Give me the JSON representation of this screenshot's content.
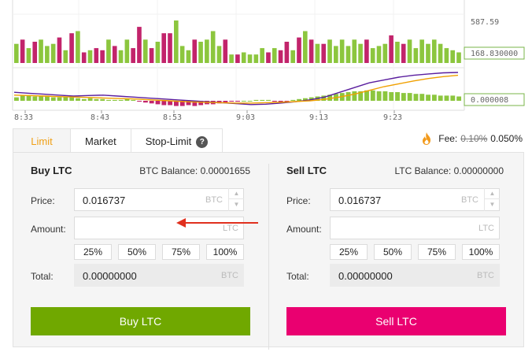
{
  "chart": {
    "right_labels": {
      "top_price": "587.59",
      "volume": "168.830000",
      "macd": "0.000008"
    },
    "time_ticks": [
      "8:33",
      "8:43",
      "8:53",
      "9:03",
      "9:13",
      "9:23"
    ],
    "colors": {
      "up": "#8cc63e",
      "down": "#c2246b",
      "ema_fast": "#5a1e9e",
      "ema_slow": "#f0a000",
      "volume_label_border": "#7ab648"
    },
    "volume_bars": [
      {
        "v": 0.45,
        "c": "up"
      },
      {
        "v": 0.55,
        "c": "down"
      },
      {
        "v": 0.35,
        "c": "up"
      },
      {
        "v": 0.5,
        "c": "down"
      },
      {
        "v": 0.55,
        "c": "up"
      },
      {
        "v": 0.4,
        "c": "up"
      },
      {
        "v": 0.45,
        "c": "up"
      },
      {
        "v": 0.6,
        "c": "down"
      },
      {
        "v": 0.3,
        "c": "up"
      },
      {
        "v": 0.7,
        "c": "down"
      },
      {
        "v": 0.75,
        "c": "up"
      },
      {
        "v": 0.25,
        "c": "down"
      },
      {
        "v": 0.3,
        "c": "up"
      },
      {
        "v": 0.35,
        "c": "down"
      },
      {
        "v": 0.3,
        "c": "down"
      },
      {
        "v": 0.55,
        "c": "up"
      },
      {
        "v": 0.4,
        "c": "down"
      },
      {
        "v": 0.3,
        "c": "up"
      },
      {
        "v": 0.55,
        "c": "up"
      },
      {
        "v": 0.35,
        "c": "down"
      },
      {
        "v": 0.85,
        "c": "down"
      },
      {
        "v": 0.55,
        "c": "up"
      },
      {
        "v": 0.35,
        "c": "down"
      },
      {
        "v": 0.5,
        "c": "up"
      },
      {
        "v": 0.7,
        "c": "down"
      },
      {
        "v": 0.7,
        "c": "down"
      },
      {
        "v": 1.0,
        "c": "up"
      },
      {
        "v": 0.4,
        "c": "up"
      },
      {
        "v": 0.3,
        "c": "up"
      },
      {
        "v": 0.55,
        "c": "down"
      },
      {
        "v": 0.5,
        "c": "up"
      },
      {
        "v": 0.55,
        "c": "up"
      },
      {
        "v": 0.75,
        "c": "up"
      },
      {
        "v": 0.4,
        "c": "up"
      },
      {
        "v": 0.55,
        "c": "down"
      },
      {
        "v": 0.2,
        "c": "up"
      },
      {
        "v": 0.2,
        "c": "down"
      },
      {
        "v": 0.25,
        "c": "up"
      },
      {
        "v": 0.2,
        "c": "up"
      },
      {
        "v": 0.2,
        "c": "up"
      },
      {
        "v": 0.35,
        "c": "up"
      },
      {
        "v": 0.25,
        "c": "down"
      },
      {
        "v": 0.35,
        "c": "up"
      },
      {
        "v": 0.3,
        "c": "down"
      },
      {
        "v": 0.5,
        "c": "down"
      },
      {
        "v": 0.3,
        "c": "up"
      },
      {
        "v": 0.6,
        "c": "down"
      },
      {
        "v": 0.75,
        "c": "up"
      },
      {
        "v": 0.55,
        "c": "down"
      },
      {
        "v": 0.45,
        "c": "up"
      },
      {
        "v": 0.45,
        "c": "down"
      },
      {
        "v": 0.55,
        "c": "up"
      },
      {
        "v": 0.4,
        "c": "up"
      },
      {
        "v": 0.55,
        "c": "up"
      },
      {
        "v": 0.4,
        "c": "up"
      },
      {
        "v": 0.55,
        "c": "up"
      },
      {
        "v": 0.45,
        "c": "up"
      },
      {
        "v": 0.55,
        "c": "down"
      },
      {
        "v": 0.35,
        "c": "up"
      },
      {
        "v": 0.4,
        "c": "up"
      },
      {
        "v": 0.45,
        "c": "up"
      },
      {
        "v": 0.65,
        "c": "down"
      },
      {
        "v": 0.5,
        "c": "up"
      },
      {
        "v": 0.45,
        "c": "down"
      },
      {
        "v": 0.55,
        "c": "up"
      },
      {
        "v": 0.35,
        "c": "up"
      },
      {
        "v": 0.55,
        "c": "up"
      },
      {
        "v": 0.45,
        "c": "up"
      },
      {
        "v": 0.55,
        "c": "up"
      },
      {
        "v": 0.45,
        "c": "up"
      },
      {
        "v": 0.35,
        "c": "up"
      },
      {
        "v": 0.3,
        "c": "up"
      },
      {
        "v": 0.25,
        "c": "up"
      }
    ],
    "macd_hist": [
      0.2,
      0.3,
      0.3,
      0.25,
      0.3,
      0.3,
      0.2,
      0.2,
      0.25,
      0.2,
      0.15,
      0.1,
      0.15,
      0.1,
      0.1,
      0.05,
      0.05,
      0.05,
      0.1,
      0.05,
      -0.05,
      -0.1,
      -0.15,
      -0.2,
      -0.25,
      -0.25,
      -0.3,
      -0.3,
      -0.25,
      -0.3,
      -0.25,
      -0.2,
      -0.2,
      -0.15,
      -0.1,
      -0.05,
      -0.05,
      0.0,
      0.0,
      0.05,
      0.05,
      0.05,
      -0.05,
      -0.1,
      -0.1,
      0.05,
      0.1,
      0.15,
      0.2,
      0.25,
      0.3,
      0.35,
      0.4,
      0.45,
      0.5,
      0.55,
      0.55,
      0.6,
      0.6,
      0.55,
      0.55,
      0.5,
      0.5,
      0.45,
      0.45,
      0.4,
      0.4,
      0.35,
      0.35,
      0.3,
      0.3,
      0.3,
      0.25
    ],
    "ema_fast": [
      0.45,
      0.4,
      0.35,
      0.3,
      0.25,
      0.28,
      0.3,
      0.25,
      0.2,
      0.15,
      0.1,
      0.05,
      0.0,
      -0.05,
      -0.1,
      -0.15,
      -0.2,
      -0.18,
      -0.12,
      -0.05,
      0.05,
      0.2,
      0.45,
      0.7,
      0.95,
      1.1,
      1.25,
      1.35,
      1.42,
      1.48,
      1.5
    ],
    "ema_slow": [
      0.3,
      0.28,
      0.25,
      0.22,
      0.2,
      0.18,
      0.15,
      0.12,
      0.1,
      0.06,
      0.02,
      -0.02,
      -0.06,
      -0.08,
      -0.1,
      -0.12,
      -0.12,
      -0.1,
      -0.08,
      -0.04,
      0.0,
      0.08,
      0.2,
      0.35,
      0.55,
      0.75,
      0.9,
      1.05,
      1.18,
      1.28,
      1.35
    ]
  },
  "tabs": [
    {
      "label": "Limit",
      "active": true
    },
    {
      "label": "Market",
      "active": false
    },
    {
      "label": "Stop-Limit",
      "active": false
    }
  ],
  "fee": {
    "label": "Fee:",
    "old": "0.10%",
    "new": "0.050%"
  },
  "buy": {
    "title": "Buy LTC",
    "balance": "BTC Balance: 0.00001655",
    "price_label": "Price:",
    "price_value": "0.016737",
    "price_unit": "BTC",
    "amount_label": "Amount:",
    "amount_value": "",
    "amount_unit": "LTC",
    "pcts": [
      "25%",
      "50%",
      "75%",
      "100%"
    ],
    "total_label": "Total:",
    "total_value": "0.00000000",
    "total_unit": "BTC",
    "button": "Buy LTC"
  },
  "sell": {
    "title": "Sell LTC",
    "balance": "LTC Balance: 0.00000000",
    "price_label": "Price:",
    "price_value": "0.016737",
    "price_unit": "BTC",
    "amount_label": "Amount:",
    "amount_value": "",
    "amount_unit": "LTC",
    "pcts": [
      "25%",
      "50%",
      "75%",
      "100%"
    ],
    "total_label": "Total:",
    "total_value": "0.00000000",
    "total_unit": "BTC",
    "button": "Sell LTC"
  }
}
